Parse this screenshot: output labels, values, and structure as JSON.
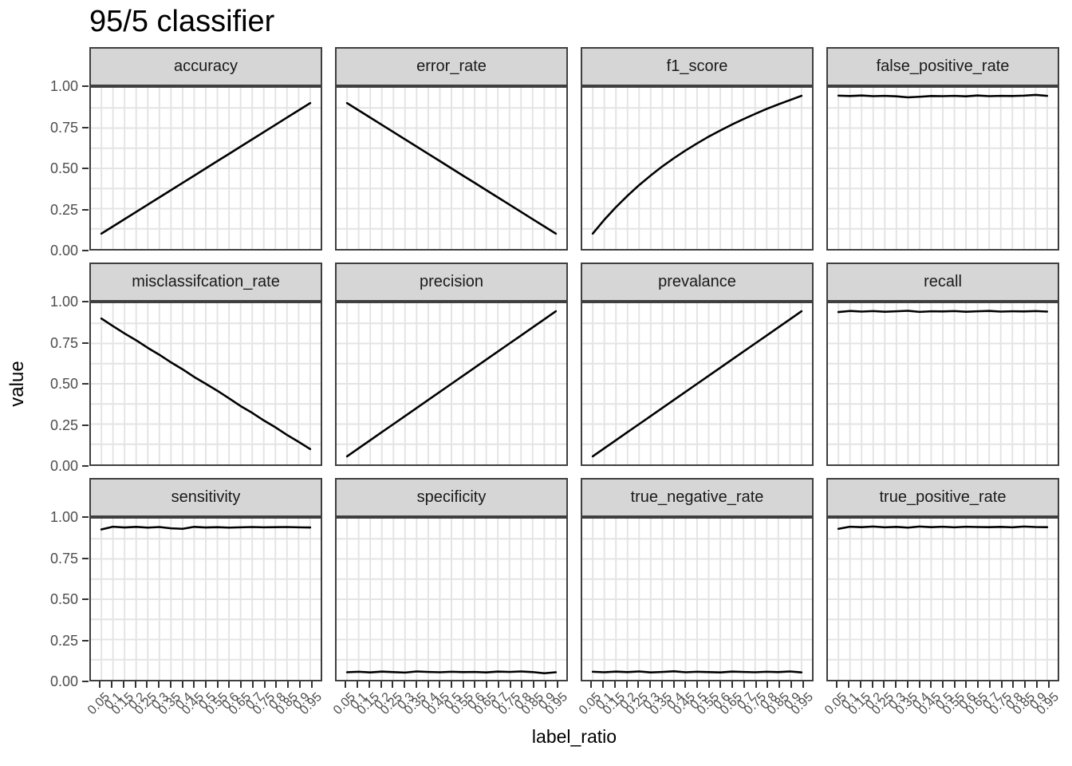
{
  "title": "95/5 classifier",
  "y_axis": {
    "title": "value",
    "ticks": [
      "1.00",
      "0.75",
      "0.50",
      "0.25",
      "0.00"
    ]
  },
  "x_axis": {
    "title": "label_ratio",
    "ticks": [
      "0.05",
      "0.1",
      "0.15",
      "0.2",
      "0.25",
      "0.3",
      "0.35",
      "0.4",
      "0.45",
      "0.5",
      "0.55",
      "0.6",
      "0.65",
      "0.7",
      "0.75",
      "0.8",
      "0.85",
      "0.9",
      "0.95"
    ]
  },
  "colors": {
    "line": "#000000",
    "strip_fill": "#d6d6d6",
    "panel_border": "#3f3f3f",
    "grid": "#e4e4e4",
    "tick_text": "#4d4d4d"
  },
  "chart_data": {
    "type": "line",
    "title": "95/5 classifier",
    "xlabel": "label_ratio",
    "ylabel": "value",
    "ylim": [
      0,
      1
    ],
    "grid": "on",
    "legend": "none",
    "facet_layout": {
      "rows": 3,
      "cols": 4
    },
    "x": [
      0.05,
      0.1,
      0.15,
      0.2,
      0.25,
      0.3,
      0.35,
      0.4,
      0.45,
      0.5,
      0.55,
      0.6,
      0.65,
      0.7,
      0.75,
      0.8,
      0.85,
      0.9,
      0.95
    ],
    "series": [
      {
        "name": "accuracy",
        "values": [
          0.095,
          0.14,
          0.185,
          0.23,
          0.275,
          0.32,
          0.365,
          0.41,
          0.455,
          0.5,
          0.545,
          0.59,
          0.635,
          0.68,
          0.725,
          0.77,
          0.815,
          0.86,
          0.905
        ]
      },
      {
        "name": "error_rate",
        "values": [
          0.905,
          0.86,
          0.815,
          0.77,
          0.725,
          0.68,
          0.635,
          0.59,
          0.545,
          0.5,
          0.455,
          0.41,
          0.365,
          0.32,
          0.275,
          0.23,
          0.185,
          0.14,
          0.095
        ]
      },
      {
        "name": "f1_score",
        "values": [
          0.095,
          0.181,
          0.259,
          0.33,
          0.396,
          0.456,
          0.512,
          0.563,
          0.611,
          0.655,
          0.697,
          0.735,
          0.772,
          0.806,
          0.838,
          0.869,
          0.897,
          0.924,
          0.95
        ]
      },
      {
        "name": "false_positive_rate",
        "values": [
          0.951,
          0.949,
          0.952,
          0.948,
          0.95,
          0.947,
          0.941,
          0.944,
          0.949,
          0.948,
          0.95,
          0.947,
          0.952,
          0.948,
          0.95,
          0.949,
          0.951,
          0.956,
          0.95
        ]
      },
      {
        "name": "misclassifcation_rate",
        "values": [
          0.905,
          0.858,
          0.812,
          0.77,
          0.723,
          0.68,
          0.633,
          0.59,
          0.542,
          0.5,
          0.457,
          0.41,
          0.362,
          0.32,
          0.273,
          0.23,
          0.183,
          0.14,
          0.095
        ]
      },
      {
        "name": "precision",
        "values": [
          0.05,
          0.1,
          0.15,
          0.2,
          0.25,
          0.3,
          0.35,
          0.4,
          0.45,
          0.5,
          0.55,
          0.6,
          0.65,
          0.7,
          0.75,
          0.8,
          0.85,
          0.9,
          0.95
        ]
      },
      {
        "name": "prevalance",
        "values": [
          0.05,
          0.1,
          0.15,
          0.2,
          0.25,
          0.3,
          0.35,
          0.4,
          0.45,
          0.5,
          0.55,
          0.6,
          0.65,
          0.7,
          0.75,
          0.8,
          0.85,
          0.9,
          0.95
        ]
      },
      {
        "name": "recall",
        "values": [
          0.945,
          0.952,
          0.948,
          0.951,
          0.947,
          0.95,
          0.953,
          0.946,
          0.95,
          0.949,
          0.951,
          0.947,
          0.95,
          0.952,
          0.948,
          0.95,
          0.949,
          0.951,
          0.948
        ]
      },
      {
        "name": "sensitivity",
        "values": [
          0.933,
          0.95,
          0.945,
          0.949,
          0.944,
          0.948,
          0.94,
          0.937,
          0.949,
          0.945,
          0.947,
          0.944,
          0.946,
          0.948,
          0.946,
          0.947,
          0.948,
          0.946,
          0.945
        ]
      },
      {
        "name": "specificity",
        "values": [
          0.047,
          0.05,
          0.046,
          0.051,
          0.048,
          0.045,
          0.052,
          0.049,
          0.047,
          0.05,
          0.048,
          0.049,
          0.046,
          0.051,
          0.049,
          0.052,
          0.048,
          0.041,
          0.047
        ]
      },
      {
        "name": "true_negative_rate",
        "values": [
          0.05,
          0.047,
          0.051,
          0.048,
          0.052,
          0.046,
          0.049,
          0.053,
          0.047,
          0.05,
          0.048,
          0.046,
          0.051,
          0.049,
          0.047,
          0.05,
          0.048,
          0.052,
          0.046
        ]
      },
      {
        "name": "true_positive_rate",
        "values": [
          0.937,
          0.95,
          0.947,
          0.951,
          0.946,
          0.949,
          0.944,
          0.951,
          0.947,
          0.95,
          0.946,
          0.95,
          0.948,
          0.947,
          0.949,
          0.946,
          0.951,
          0.948,
          0.947
        ]
      }
    ]
  }
}
